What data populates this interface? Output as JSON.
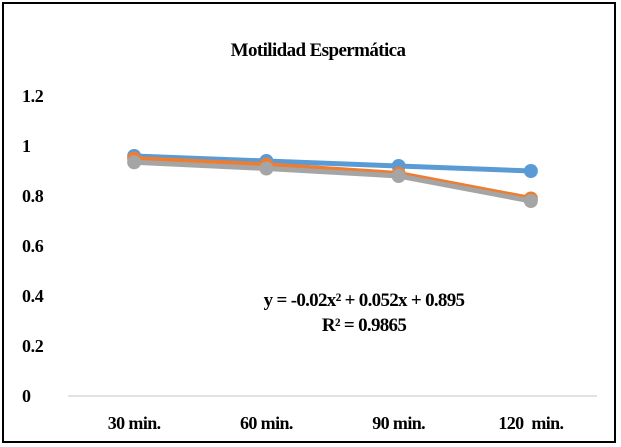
{
  "chart_data": {
    "type": "line",
    "title": "Motilidad  Espermática",
    "xlabel": "",
    "ylabel": "",
    "categories": [
      "30 min.",
      "60 min.",
      "90 min.",
      "120  min."
    ],
    "yticks": [
      "1.2",
      "1",
      "0.8",
      "0.6",
      "0.4",
      "0.2",
      "0"
    ],
    "ylim": [
      0,
      1.2
    ],
    "grid": false,
    "legend": "none",
    "series": [
      {
        "color": "#5B9BD5",
        "values": [
          0.96,
          0.94,
          0.92,
          0.9
        ]
      },
      {
        "color": "#ED7D31",
        "values": [
          0.95,
          0.925,
          0.89,
          0.79
        ]
      },
      {
        "color": "#A5A5A5",
        "values": [
          0.935,
          0.91,
          0.88,
          0.78
        ]
      }
    ],
    "annotations": {
      "equation": "y = -0.02x² + 0.052x + 0.895",
      "r_squared": "R² = 0.9865"
    }
  }
}
